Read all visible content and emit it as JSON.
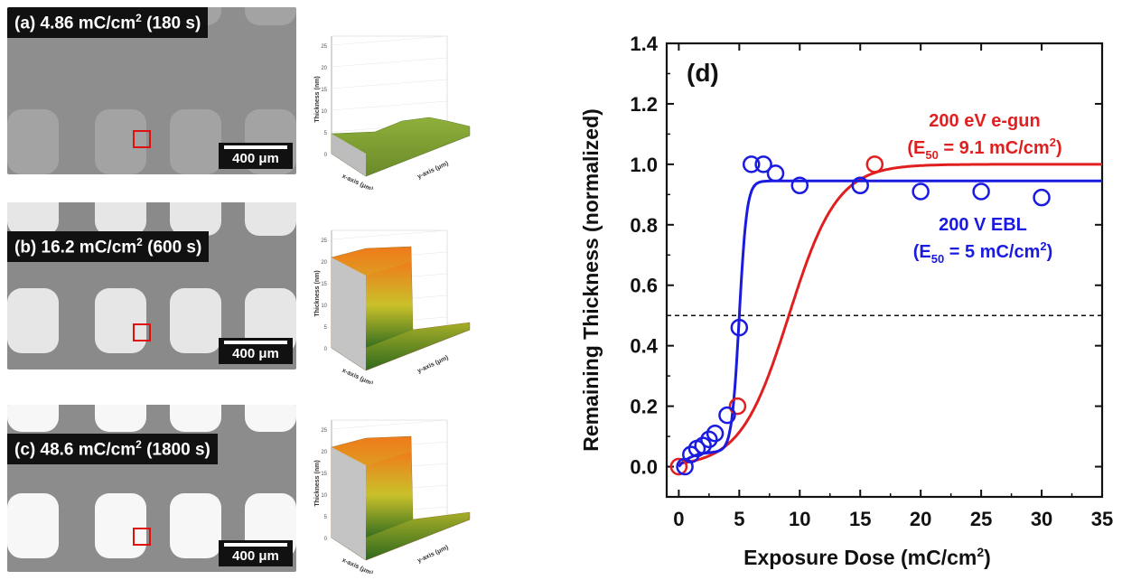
{
  "panels": [
    {
      "id": "a",
      "label_main": "(a) 4.86 mC/cm",
      "label_sup": "2",
      "label_tail": " (180 s)",
      "scalebar": "400 μm",
      "background": "#8e8e8e",
      "pad_color": "#a3a3a3",
      "profile_colors": [
        "#6a8a2a",
        "#8fb03a"
      ]
    },
    {
      "id": "b",
      "label_main": "(b) 16.2 mC/cm",
      "label_sup": "2",
      "label_tail": " (600 s)",
      "scalebar": "400 μm",
      "background": "#8a8a8a",
      "pad_color": "#e6e6e6",
      "profile_colors": [
        "#2f6a1e",
        "#c9c12a",
        "#f07a1a"
      ]
    },
    {
      "id": "c",
      "label_main": "(c) 48.6 mC/cm",
      "label_sup": "2",
      "label_tail": " (1800 s)",
      "scalebar": "400 μm",
      "background": "#8c8c8c",
      "pad_color": "#f7f7f7",
      "profile_colors": [
        "#2f6a1e",
        "#c9c12a",
        "#f07a1a"
      ]
    }
  ],
  "plot3d": {
    "z_label": "Thickness (nm)",
    "x_label": "x-axis (μm)",
    "y_label": "y-axis (μm)",
    "z_ticks": [
      "0",
      "5",
      "10",
      "15",
      "20",
      "25"
    ],
    "xy_ticks": [
      "0",
      "5",
      "10",
      "15",
      "20"
    ]
  },
  "chart_data": {
    "type": "scatter",
    "panel_label": "(d)",
    "xlabel": "Exposure Dose (mC/cm",
    "xlabel_sup": "2",
    "xlabel_tail": ")",
    "ylabel": "Remaining Thickness (normalized)",
    "xlim": [
      -1,
      35
    ],
    "ylim": [
      -0.1,
      1.4
    ],
    "xticks": [
      0,
      5,
      10,
      15,
      20,
      25,
      30,
      35
    ],
    "yticks": [
      0.0,
      0.2,
      0.4,
      0.6,
      0.8,
      1.0,
      1.2,
      1.4
    ],
    "reference_line": 0.5,
    "series": [
      {
        "name": "200 eV e-gun",
        "annotation_line1": "200 eV e-gun",
        "annotation_line2_pre": "(E",
        "annotation_line2_sub": "50",
        "annotation_line2_mid": " = 9.1 mC/cm",
        "annotation_line2_sup": "2",
        "annotation_line2_tail": ")",
        "color": "#e02020",
        "x": [
          0,
          4.86,
          16.2
        ],
        "y": [
          0.0,
          0.2,
          1.0
        ],
        "fit": {
          "E50": 9.1,
          "plateau": 1.0,
          "k": 0.5
        }
      },
      {
        "name": "200 V EBL",
        "annotation_line1": "200 V EBL",
        "annotation_line2_pre": "(E",
        "annotation_line2_sub": "50",
        "annotation_line2_mid": " = 5 mC/cm",
        "annotation_line2_sup": "2",
        "annotation_line2_tail": ")",
        "color": "#1a1ae0",
        "x": [
          0.5,
          1.0,
          1.5,
          2.0,
          2.5,
          3.0,
          4.0,
          5.0,
          6.0,
          7.0,
          8.0,
          10.0,
          15.0,
          20.0,
          25.0,
          30.0
        ],
        "y": [
          0.0,
          0.04,
          0.06,
          0.07,
          0.09,
          0.11,
          0.17,
          0.46,
          1.0,
          1.0,
          0.97,
          0.93,
          0.93,
          0.91,
          0.91,
          0.89
        ],
        "fit": {
          "E50": 5.0,
          "plateau": 0.945,
          "k": 3.2
        }
      }
    ]
  }
}
